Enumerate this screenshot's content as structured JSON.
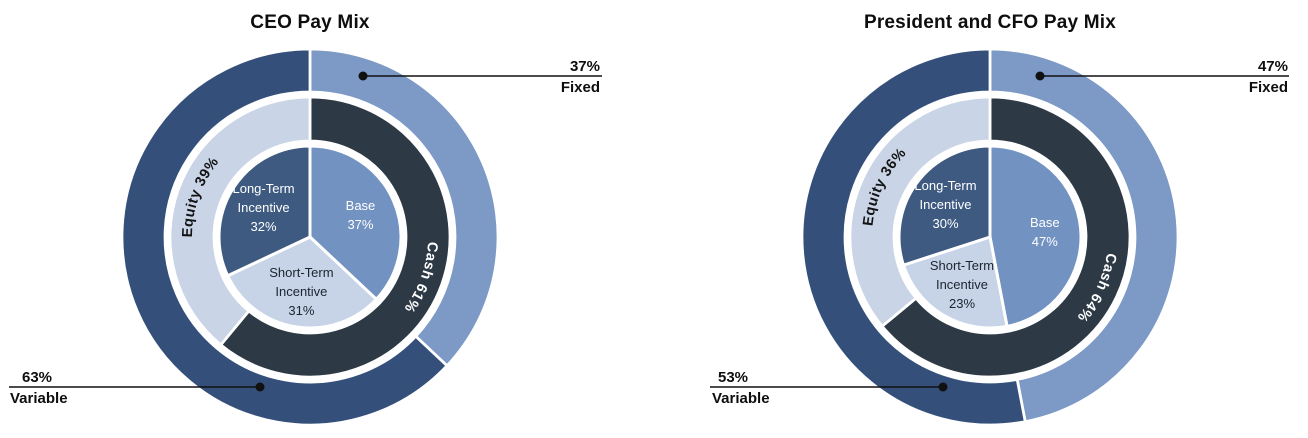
{
  "chart_data": [
    {
      "type": "pie",
      "subtype": "multi-ring-donut",
      "title": "CEO Pay Mix",
      "rings": {
        "outer": {
          "name": "fixed-vs-variable",
          "segments": [
            {
              "label": "Fixed",
              "pct": 37,
              "color": "#7d99c6"
            },
            {
              "label": "Variable",
              "pct": 63,
              "color": "#34507a"
            }
          ]
        },
        "middle": {
          "name": "cash-vs-equity",
          "segments": [
            {
              "label": "Cash 61%",
              "pct": 61,
              "color": "#2d3a46",
              "text_color": "#ffffff"
            },
            {
              "label": "Equity 39%",
              "pct": 39,
              "color": "#c9d4e6",
              "text_color": "#131313"
            }
          ]
        },
        "inner": {
          "name": "pay-components",
          "segments": [
            {
              "label": "Base 37%",
              "lines": [
                "Base",
                "37%"
              ],
              "pct": 37,
              "color": "#7292c2",
              "text_color": "#ffffff"
            },
            {
              "label": "Short-Term Incentive 31%",
              "lines": [
                "Short-Term",
                "Incentive",
                "31%"
              ],
              "pct": 31,
              "color": "#c7d3e7",
              "text_color": "#1c2530"
            },
            {
              "label": "Long-Term Incentive 32%",
              "lines": [
                "Long-Term",
                "Incentive",
                "32%"
              ],
              "pct": 32,
              "color": "#3e5a81",
              "text_color": "#ffffff"
            }
          ]
        }
      },
      "callouts": [
        {
          "value": "37%",
          "label": "Fixed"
        },
        {
          "value": "63%",
          "label": "Variable"
        }
      ]
    },
    {
      "type": "pie",
      "subtype": "multi-ring-donut",
      "title": "President and CFO Pay Mix",
      "rings": {
        "outer": {
          "name": "fixed-vs-variable",
          "segments": [
            {
              "label": "Fixed",
              "pct": 47,
              "color": "#7d99c6"
            },
            {
              "label": "Variable",
              "pct": 53,
              "color": "#34507a"
            }
          ]
        },
        "middle": {
          "name": "cash-vs-equity",
          "segments": [
            {
              "label": "Cash 64%",
              "pct": 64,
              "color": "#2d3a46",
              "text_color": "#ffffff"
            },
            {
              "label": "Equity 36%",
              "pct": 36,
              "color": "#c9d4e6",
              "text_color": "#131313"
            }
          ]
        },
        "inner": {
          "name": "pay-components",
          "segments": [
            {
              "label": "Base 47%",
              "lines": [
                "Base",
                "47%"
              ],
              "pct": 47,
              "color": "#7292c2",
              "text_color": "#ffffff"
            },
            {
              "label": "Short-Term Incentive 23%",
              "lines": [
                "Short-Term",
                "Incentive",
                "23%"
              ],
              "pct": 23,
              "color": "#c7d3e7",
              "text_color": "#1c2530"
            },
            {
              "label": "Long-Term Incentive 30%",
              "lines": [
                "Long-Term",
                "Incentive",
                "30%"
              ],
              "pct": 30,
              "color": "#3e5a81",
              "text_color": "#ffffff"
            }
          ]
        }
      },
      "callouts": [
        {
          "value": "47%",
          "label": "Fixed"
        },
        {
          "value": "53%",
          "label": "Variable"
        }
      ]
    }
  ],
  "colors": {
    "fixed_outer": "#7d99c6",
    "variable_outer": "#34507a",
    "cash_ring": "#2d3a46",
    "equity_ring": "#c9d4e6",
    "base_slice": "#7292c2",
    "short_term_slice": "#c7d3e7",
    "long_term_slice": "#3e5a81",
    "leader_line": "#111111",
    "text": "#0e0e0e"
  }
}
